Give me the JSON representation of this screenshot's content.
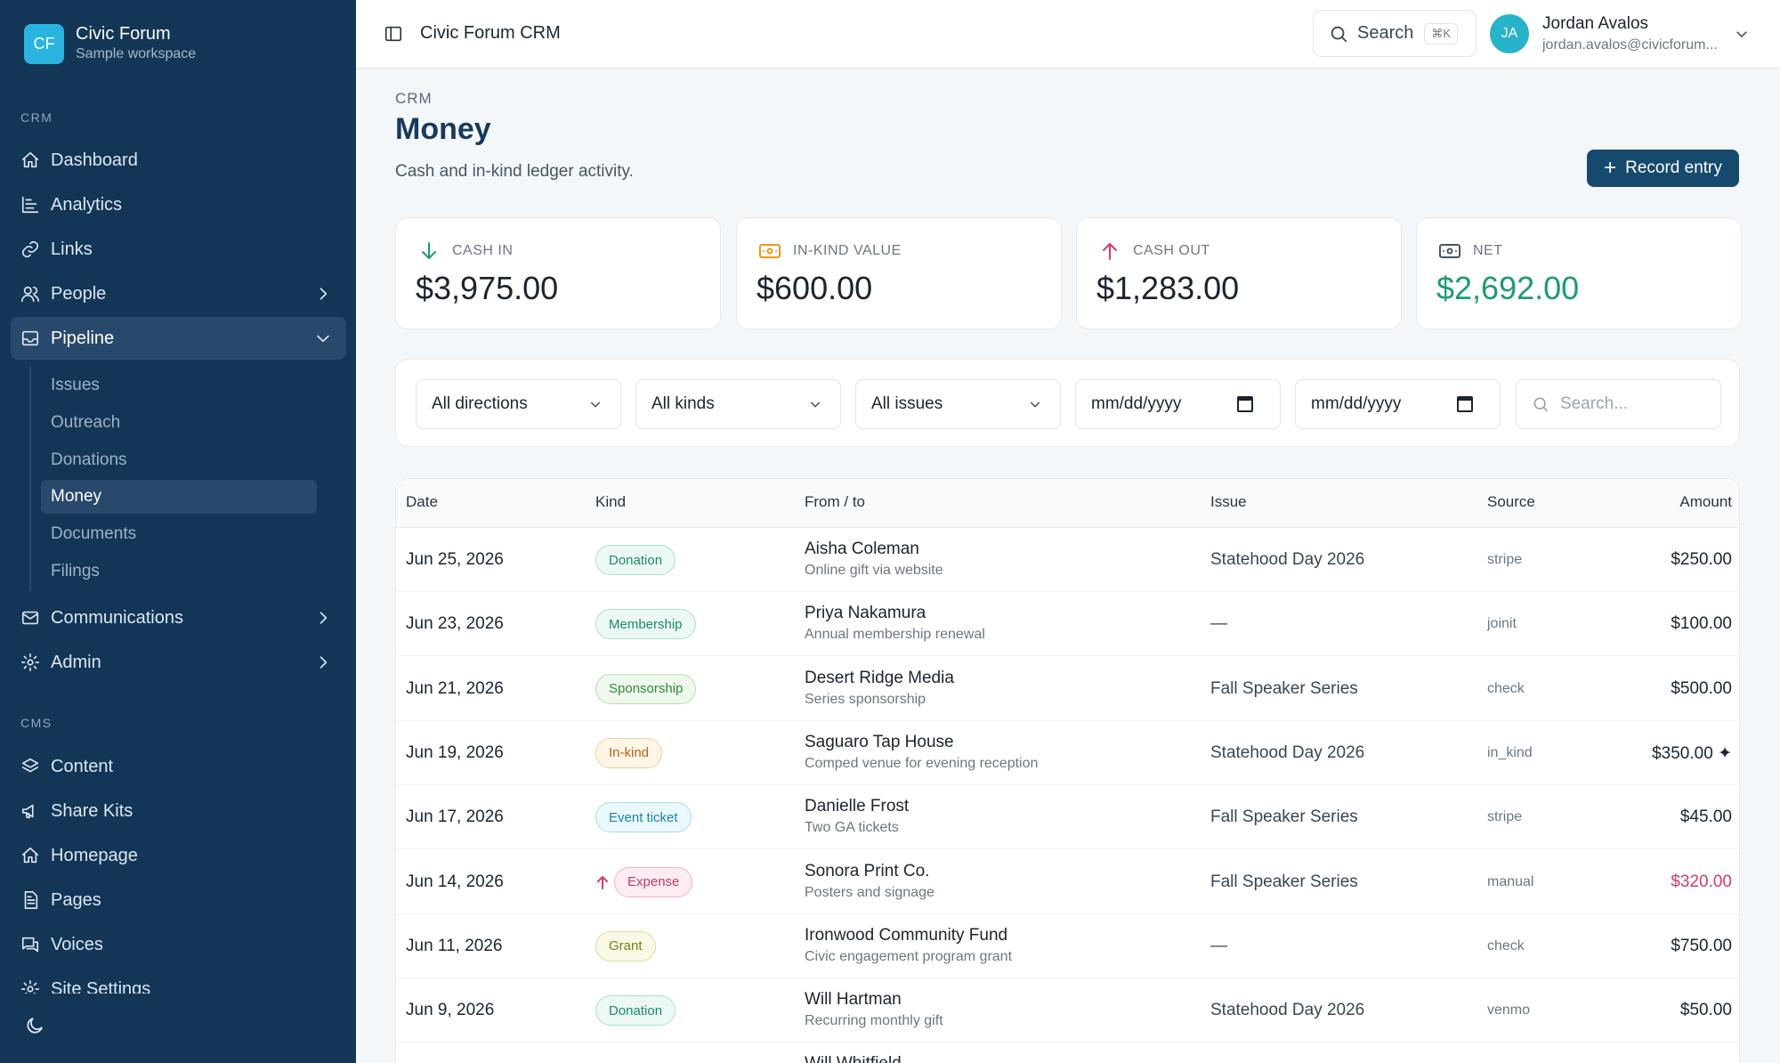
{
  "workspace": {
    "initials": "CF",
    "name": "Civic Forum",
    "subtitle": "Sample workspace"
  },
  "sidebar": {
    "crm_label": "CRM",
    "cms_label": "CMS",
    "items": [
      {
        "label": "Dashboard",
        "icon": "home-icon"
      },
      {
        "label": "Analytics",
        "icon": "chart-icon"
      },
      {
        "label": "Links",
        "icon": "link-icon"
      },
      {
        "label": "People",
        "icon": "people-icon"
      },
      {
        "label": "Pipeline",
        "icon": "inbox-icon"
      },
      {
        "label": "Communications",
        "icon": "mail-icon"
      },
      {
        "label": "Admin",
        "icon": "gear-icon"
      }
    ],
    "pipeline_sub": [
      "Issues",
      "Outreach",
      "Donations",
      "Money",
      "Documents",
      "Filings"
    ],
    "cms_items": [
      {
        "label": "Content",
        "icon": "layers-icon"
      },
      {
        "label": "Share Kits",
        "icon": "megaphone-icon"
      },
      {
        "label": "Homepage",
        "icon": "home-icon"
      },
      {
        "label": "Pages",
        "icon": "page-icon"
      },
      {
        "label": "Voices",
        "icon": "chat-icon"
      },
      {
        "label": "Site Settings",
        "icon": "gear-icon"
      }
    ]
  },
  "topbar": {
    "app_title": "Civic Forum CRM",
    "search_label": "Search",
    "search_shortcut": "⌘K",
    "user_initials": "JA",
    "user_name": "Jordan Avalos",
    "user_email": "jordan.avalos@civicforum..."
  },
  "header": {
    "crumb": "CRM",
    "title": "Money",
    "subtitle": "Cash and in-kind ledger activity.",
    "record_button": "Record entry"
  },
  "stats": [
    {
      "label": "CASH IN",
      "value": "$3,975.00",
      "icon": "arrow-down-icon",
      "color": "#1e9a74"
    },
    {
      "label": "IN-KIND VALUE",
      "value": "$600.00",
      "icon": "banknote-icon",
      "color": "#e79a1e"
    },
    {
      "label": "CASH OUT",
      "value": "$1,283.00",
      "icon": "arrow-up-icon",
      "color": "#d23c6b"
    },
    {
      "label": "NET",
      "value": "$2,692.00",
      "icon": "banknote-icon",
      "color": "#1e9a74"
    }
  ],
  "filters": {
    "direction": "All directions",
    "kind": "All kinds",
    "issue": "All issues",
    "date_from": "mm/dd/yyyy",
    "date_to": "mm/dd/yyyy",
    "search_placeholder": "Search..."
  },
  "table": {
    "columns": [
      "Date",
      "Kind",
      "From / to",
      "Issue",
      "Source",
      "Amount"
    ],
    "rows": [
      {
        "date": "Jun 25, 2026",
        "kind": "Donation",
        "name": "Aisha Coleman",
        "desc": "Online gift via website",
        "issue": "Statehood Day 2026",
        "source": "stripe",
        "amount": "$250.00"
      },
      {
        "date": "Jun 23, 2026",
        "kind": "Membership",
        "name": "Priya Nakamura",
        "desc": "Annual membership renewal",
        "issue": "—",
        "source": "joinit",
        "amount": "$100.00"
      },
      {
        "date": "Jun 21, 2026",
        "kind": "Sponsorship",
        "name": "Desert Ridge Media",
        "desc": "Series sponsorship",
        "issue": "Fall Speaker Series",
        "source": "check",
        "amount": "$500.00"
      },
      {
        "date": "Jun 19, 2026",
        "kind": "In-kind",
        "name": "Saguaro Tap House",
        "desc": "Comped venue for evening reception",
        "issue": "Statehood Day 2026",
        "source": "in_kind",
        "amount": "$350.00 ✦"
      },
      {
        "date": "Jun 17, 2026",
        "kind": "Event ticket",
        "name": "Danielle Frost",
        "desc": "Two GA tickets",
        "issue": "Fall Speaker Series",
        "source": "stripe",
        "amount": "$45.00"
      },
      {
        "date": "Jun 14, 2026",
        "kind": "Expense",
        "name": "Sonora Print Co.",
        "desc": "Posters and signage",
        "issue": "Fall Speaker Series",
        "source": "manual",
        "amount": "$320.00"
      },
      {
        "date": "Jun 11, 2026",
        "kind": "Grant",
        "name": "Ironwood Community Fund",
        "desc": "Civic engagement program grant",
        "issue": "—",
        "source": "check",
        "amount": "$750.00"
      },
      {
        "date": "Jun 9, 2026",
        "kind": "Donation",
        "name": "Will Hartman",
        "desc": "Recurring monthly gift",
        "issue": "Statehood Day 2026",
        "source": "venmo",
        "amount": "$50.00"
      },
      {
        "date": "",
        "kind": "",
        "name": "Will Whitfield",
        "desc": "",
        "issue": "",
        "source": "",
        "amount": ""
      }
    ]
  },
  "kind_colors": {
    "Donation": {
      "fg": "#1b8a6a",
      "bg": "#ecf8f3",
      "border": "#a9e1cc"
    },
    "Membership": {
      "fg": "#1b8a6a",
      "bg": "#ecf8f3",
      "border": "#a9e1cc"
    },
    "Sponsorship": {
      "fg": "#2f8a3a",
      "bg": "#eff8ec",
      "border": "#b3e0a8"
    },
    "In-kind": {
      "fg": "#b7650c",
      "bg": "#fff6e8",
      "border": "#f3cf92"
    },
    "Event ticket": {
      "fg": "#1a86a3",
      "bg": "#ebf8fb",
      "border": "#a4dbe8"
    },
    "Expense": {
      "fg": "#c23a62",
      "bg": "#fdedf2",
      "border": "#f2b3c6"
    },
    "Grant": {
      "fg": "#7a7d12",
      "bg": "#f9f9e6",
      "border": "#dedd96"
    }
  },
  "expense_amount_color": "#d23c6b"
}
